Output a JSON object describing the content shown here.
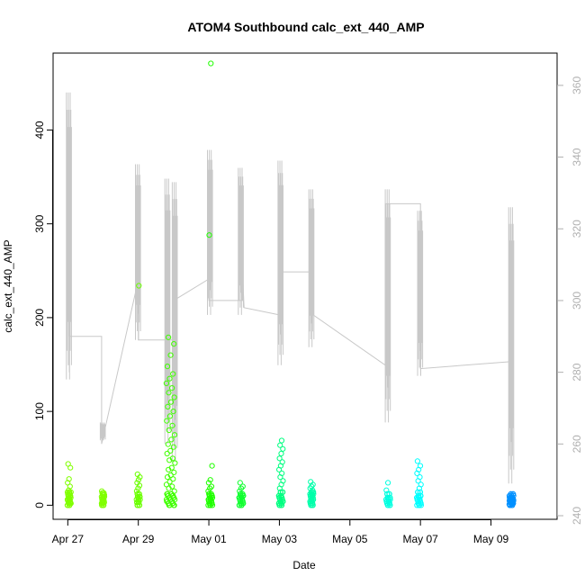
{
  "chart_data": {
    "type": "scatter",
    "title": "ATOM4 Southbound calc_ext_440_AMP",
    "xlabel": "Date",
    "ylabel": "calc_ext_440_AMP",
    "xlim": [
      "2023-04-26T14:00",
      "2023-05-10T21:00"
    ],
    "ylim": [
      -15,
      482
    ],
    "x_ticks": [
      {
        "date": "2023-04-27",
        "label": "Apr 27"
      },
      {
        "date": "2023-04-29",
        "label": "Apr 29"
      },
      {
        "date": "2023-05-01",
        "label": "May 01"
      },
      {
        "date": "2023-05-03",
        "label": "May 03"
      },
      {
        "date": "2023-05-05",
        "label": "May 05"
      },
      {
        "date": "2023-05-07",
        "label": "May 07"
      },
      {
        "date": "2023-05-09",
        "label": "May 09"
      }
    ],
    "y_ticks": [
      0,
      100,
      200,
      300,
      400
    ],
    "y2lim": [
      239,
      369
    ],
    "y2_ticks": [
      240,
      260,
      280,
      300,
      320,
      340,
      360
    ],
    "grid": false,
    "legend": "none",
    "colors": {
      "line": "#c8c8c8",
      "axis": "#000000",
      "axis2": "#b0b0b0"
    },
    "clusters": [
      {
        "x": "2023-04-27T01:00",
        "width_h": 2.5,
        "color": "#80ff00",
        "y": [
          0,
          2,
          3,
          5,
          6,
          8,
          10,
          12,
          14,
          16,
          20,
          24,
          28,
          40,
          44
        ]
      },
      {
        "x": "2023-04-28T00:00",
        "width_h": 2,
        "color": "#80ff00",
        "y": [
          0,
          2,
          3,
          5,
          7,
          9,
          11,
          13,
          15
        ]
      },
      {
        "x": "2023-04-29T00:00",
        "width_h": 2.5,
        "color": "#6aff00",
        "y": [
          0,
          3,
          6,
          9,
          12,
          15,
          18,
          21,
          24,
          27,
          30,
          33,
          234
        ]
      },
      {
        "x": "2023-04-29T22:00",
        "width_h": 6,
        "color": "#40ff00",
        "y": [
          0,
          2,
          4,
          6,
          8,
          10,
          12,
          15,
          18,
          20,
          22,
          25,
          28,
          30,
          32,
          35,
          38,
          40,
          45,
          48,
          50,
          55,
          58,
          62,
          65,
          70,
          75,
          80,
          85,
          90,
          95,
          100,
          105,
          110,
          115,
          120,
          125,
          130,
          135,
          140,
          148,
          160,
          172,
          179
        ]
      },
      {
        "x": "2023-05-01T01:00",
        "width_h": 3,
        "color": "#20ff00",
        "y": [
          0,
          2,
          4,
          6,
          8,
          10,
          12,
          15,
          18,
          20,
          24,
          27,
          42,
          288,
          471
        ]
      },
      {
        "x": "2023-05-01T22:00",
        "width_h": 3,
        "color": "#10ff30",
        "y": [
          0,
          2,
          4,
          6,
          8,
          10,
          12,
          15,
          18,
          20,
          24
        ]
      },
      {
        "x": "2023-05-03T01:00",
        "width_h": 3,
        "color": "#00ff80",
        "y": [
          0,
          2,
          4,
          6,
          8,
          10,
          14,
          18,
          22,
          26,
          30,
          34,
          38,
          42,
          46,
          50,
          55,
          60,
          64,
          69
        ]
      },
      {
        "x": "2023-05-03T22:00",
        "width_h": 2.5,
        "color": "#00ffaa",
        "y": [
          0,
          2,
          4,
          6,
          8,
          10,
          12,
          14,
          16,
          18,
          20,
          22,
          25
        ]
      },
      {
        "x": "2023-05-06T02:00",
        "width_h": 3,
        "color": "#00ffe0",
        "y": [
          0,
          2,
          4,
          6,
          8,
          12,
          16,
          24
        ]
      },
      {
        "x": "2023-05-06T23:00",
        "width_h": 3,
        "color": "#00ffff",
        "y": [
          0,
          2,
          4,
          6,
          8,
          10,
          14,
          18,
          22,
          26,
          30,
          34,
          38,
          42,
          47
        ]
      },
      {
        "x": "2023-05-09T14:00",
        "width_h": 3,
        "color": "#0090ff",
        "y": [
          0,
          1,
          2,
          3,
          4,
          5,
          6,
          7,
          8,
          10,
          12
        ]
      }
    ],
    "line_series": {
      "axis": "right",
      "nodes": [
        {
          "x": "2023-04-27T01:00",
          "y": 280
        },
        {
          "x": "2023-04-27T01:00",
          "y": 290
        },
        {
          "x": "2023-04-27T23:00",
          "y": 290
        },
        {
          "x": "2023-04-27T23:00",
          "y": 260
        },
        {
          "x": "2023-04-28T23:00",
          "y": 304
        },
        {
          "x": "2023-04-29T00:00",
          "y": 296
        },
        {
          "x": "2023-04-29T00:00",
          "y": 289
        },
        {
          "x": "2023-04-29T23:00",
          "y": 289
        },
        {
          "x": "2023-04-30T00:00",
          "y": 300
        },
        {
          "x": "2023-05-01T00:00",
          "y": 306
        },
        {
          "x": "2023-05-01T00:00",
          "y": 300
        },
        {
          "x": "2023-05-01T23:00",
          "y": 300
        },
        {
          "x": "2023-05-01T23:00",
          "y": 307
        },
        {
          "x": "2023-05-02T00:00",
          "y": 298
        },
        {
          "x": "2023-05-03T00:00",
          "y": 296
        },
        {
          "x": "2023-05-03T00:00",
          "y": 308
        },
        {
          "x": "2023-05-03T23:00",
          "y": 308
        },
        {
          "x": "2023-05-03T23:00",
          "y": 296
        },
        {
          "x": "2023-05-06T00:00",
          "y": 282
        },
        {
          "x": "2023-05-06T00:00",
          "y": 327
        },
        {
          "x": "2023-05-07T00:00",
          "y": 327
        },
        {
          "x": "2023-05-07T00:00",
          "y": 281
        },
        {
          "x": "2023-05-09T14:00",
          "y": 283
        }
      ],
      "spikes": [
        {
          "x": "2023-04-27T01:00",
          "lo": 278,
          "hi": 358
        },
        {
          "x": "2023-04-28T00:00",
          "lo": 261,
          "hi": 266
        },
        {
          "x": "2023-04-29T00:00",
          "lo": 289,
          "hi": 338
        },
        {
          "x": "2023-04-29T20:00",
          "lo": 260,
          "hi": 334
        },
        {
          "x": "2023-04-30T01:00",
          "lo": 255,
          "hi": 333
        },
        {
          "x": "2023-05-01T01:00",
          "lo": 296,
          "hi": 342
        },
        {
          "x": "2023-05-01T22:00",
          "lo": 296,
          "hi": 337
        },
        {
          "x": "2023-05-03T01:00",
          "lo": 282,
          "hi": 339
        },
        {
          "x": "2023-05-03T22:00",
          "lo": 287,
          "hi": 331
        },
        {
          "x": "2023-05-06T02:00",
          "lo": 266,
          "hi": 331
        },
        {
          "x": "2023-05-07T00:00",
          "lo": 279,
          "hi": 325
        },
        {
          "x": "2023-05-09T14:00",
          "lo": 249,
          "hi": 326
        }
      ]
    }
  }
}
